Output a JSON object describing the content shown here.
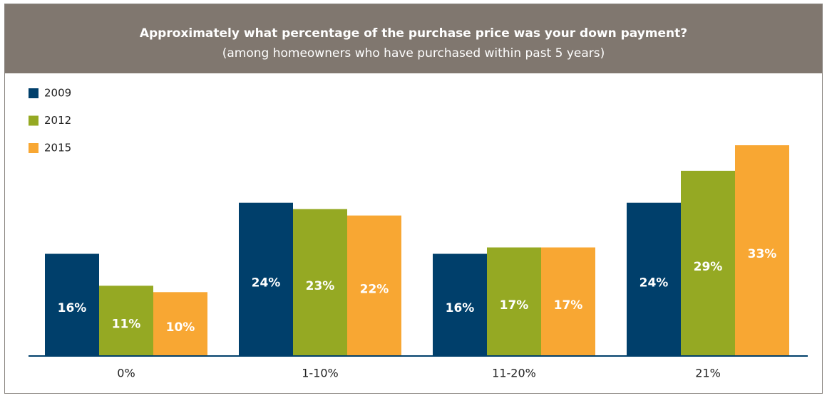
{
  "chart_data": {
    "type": "bar",
    "title": "Approximately what percentage of the purchase price was your down payment?",
    "subtitle": "(among homeowners who have purchased within past 5 years)",
    "categories": [
      "0%",
      "1-10%",
      "11-20%",
      "21%"
    ],
    "series": [
      {
        "name": "2009",
        "color": "#003f6b",
        "values": [
          16,
          24,
          16,
          24
        ],
        "value_labels": [
          "16%",
          "24%",
          "16%",
          "24%"
        ]
      },
      {
        "name": "2012",
        "color": "#95a923",
        "values": [
          11,
          23,
          17,
          29
        ],
        "value_labels": [
          "11%",
          "23%",
          "17%",
          "29%"
        ]
      },
      {
        "name": "2015",
        "color": "#f8a733",
        "values": [
          10,
          22,
          17,
          33
        ],
        "value_labels": [
          "10%",
          "22%",
          "17%",
          "33%"
        ]
      }
    ],
    "legend": "top-left"
  }
}
